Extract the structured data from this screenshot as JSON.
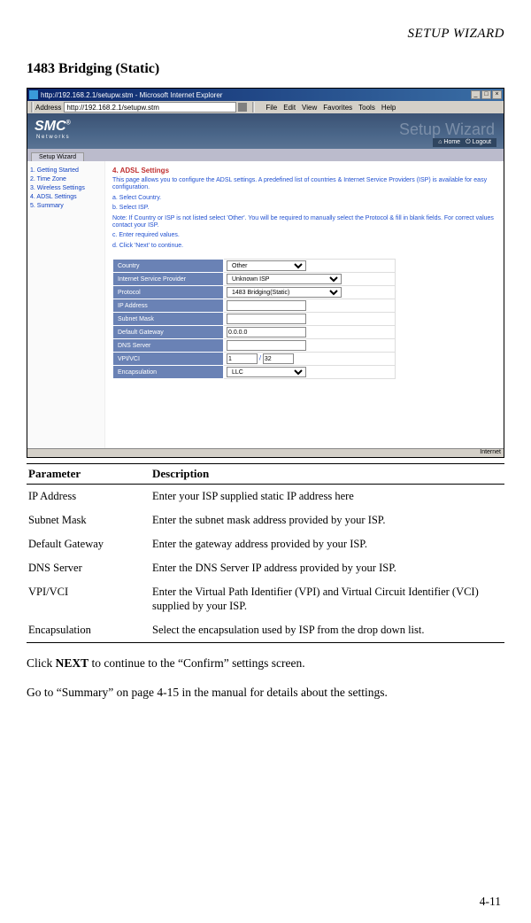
{
  "header": "SETUP WIZARD",
  "section_title": "1483 Bridging (Static)",
  "browser": {
    "title": "http://192.168.2.1/setupw.stm - Microsoft Internet Explorer",
    "address_label": "Address",
    "address_value": "http://192.168.2.1/setupw.stm",
    "menus": [
      "File",
      "Edit",
      "View",
      "Favorites",
      "Tools",
      "Help"
    ]
  },
  "smc": {
    "logo": "SMC",
    "networks": "N e t w o r k s",
    "rtext": "Setup Wizard",
    "home": "Home",
    "logout": "Logout"
  },
  "tabs": [
    "Setup Wizard"
  ],
  "sidebar": {
    "items": [
      "1. Getting Started",
      "2. Time Zone",
      "3. Wireless Settings",
      "4. ADSL Settings",
      "5. Summary"
    ]
  },
  "panel": {
    "heading": "4. ADSL Settings",
    "intro": "This page allows you to configure the ADSL settings. A predefined list of countries & Internet Service Providers (ISP) is available for easy configuration.",
    "a": "a. Select Country.",
    "b": "b. Select ISP.",
    "note": "Note: If Country or ISP is not listed select 'Other'. You will be required to manually select the Protocol & fill in blank fields. For correct values contact your ISP.",
    "c": "c. Enter required values.",
    "d": "d. Click 'Next' to continue."
  },
  "form": {
    "rows": [
      {
        "label": "Country",
        "type": "select",
        "value": "Other"
      },
      {
        "label": "Internet Service Provider",
        "type": "select",
        "value": "Unknown ISP",
        "wide": true
      },
      {
        "label": "Protocol",
        "type": "select",
        "value": "1483 Bridging(Static)",
        "wide": true
      },
      {
        "label": "IP Address",
        "type": "input",
        "value": ""
      },
      {
        "label": "Subnet Mask",
        "type": "input",
        "value": ""
      },
      {
        "label": "Default Gateway",
        "type": "input",
        "value": "0.0.0.0"
      },
      {
        "label": "DNS Server",
        "type": "input",
        "value": ""
      },
      {
        "label": "VPI/VCI",
        "type": "vpivci",
        "v1": "1",
        "v2": "32"
      },
      {
        "label": "Encapsulation",
        "type": "select",
        "value": "LLC"
      }
    ]
  },
  "param_table": {
    "head": [
      "Parameter",
      "Description"
    ],
    "rows": [
      [
        "IP Address",
        "Enter your ISP supplied static IP address here"
      ],
      [
        "Subnet Mask",
        "Enter the subnet mask address provided by your ISP."
      ],
      [
        "Default Gateway",
        "Enter the gateway address provided by your ISP."
      ],
      [
        "DNS Server",
        "Enter the DNS Server IP address provided by your ISP."
      ],
      [
        "VPI/VCI",
        "Enter the Virtual Path Identifier (VPI) and Virtual Circuit Identifier (VCI) supplied by your ISP."
      ],
      [
        "Encapsulation",
        "Select the encapsulation used by ISP from the drop down list."
      ]
    ]
  },
  "body1_a": "Click ",
  "body1_b": "NEXT",
  "body1_c": " to continue to the “Confirm” settings screen.",
  "body2": "Go to “Summary” on page 4-15 in the manual for details about the settings.",
  "page_num": "4-11"
}
